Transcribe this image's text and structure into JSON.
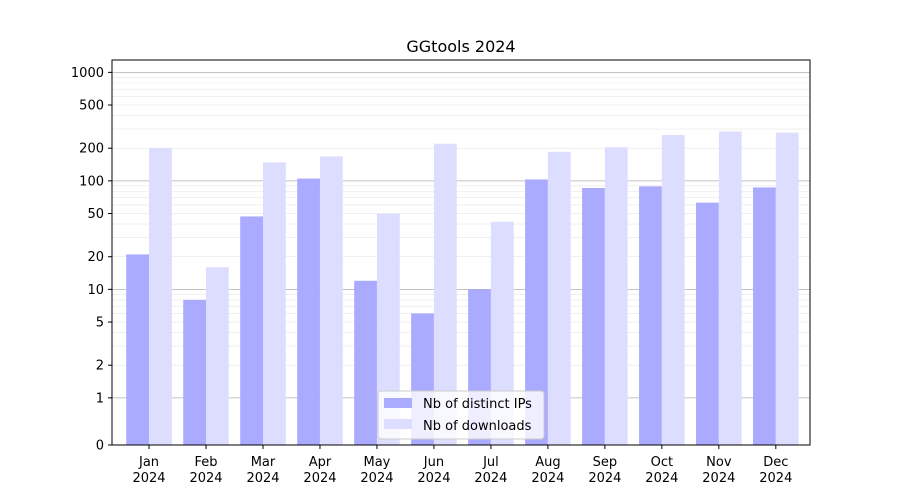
{
  "chart_data": {
    "type": "bar",
    "title": "GGtools 2024",
    "xlabel": "",
    "ylabel": "",
    "y_scale": "symlog",
    "y_ticks": [
      0,
      1,
      2,
      5,
      10,
      20,
      50,
      100,
      200,
      500,
      1000
    ],
    "y_tick_labels": [
      "0",
      "1",
      "2",
      "5",
      "10",
      "20",
      "50",
      "100",
      "200",
      "500",
      "1000"
    ],
    "ylim": [
      0,
      1300
    ],
    "grid": true,
    "legend_position": "bottom-center",
    "categories": [
      [
        "Jan",
        "2024"
      ],
      [
        "Feb",
        "2024"
      ],
      [
        "Mar",
        "2024"
      ],
      [
        "Apr",
        "2024"
      ],
      [
        "May",
        "2024"
      ],
      [
        "Jun",
        "2024"
      ],
      [
        "Jul",
        "2024"
      ],
      [
        "Aug",
        "2024"
      ],
      [
        "Sep",
        "2024"
      ],
      [
        "Oct",
        "2024"
      ],
      [
        "Nov",
        "2024"
      ],
      [
        "Dec",
        "2024"
      ]
    ],
    "series": [
      {
        "name": "Nb of distinct IPs",
        "color": "#aaaaff",
        "values": [
          21,
          8,
          47,
          105,
          12,
          6,
          10,
          103,
          86,
          89,
          63,
          87
        ]
      },
      {
        "name": "Nb of downloads",
        "color": "#ddddff",
        "values": [
          200,
          16,
          148,
          168,
          50,
          220,
          42,
          185,
          204,
          265,
          285,
          278
        ]
      }
    ]
  }
}
